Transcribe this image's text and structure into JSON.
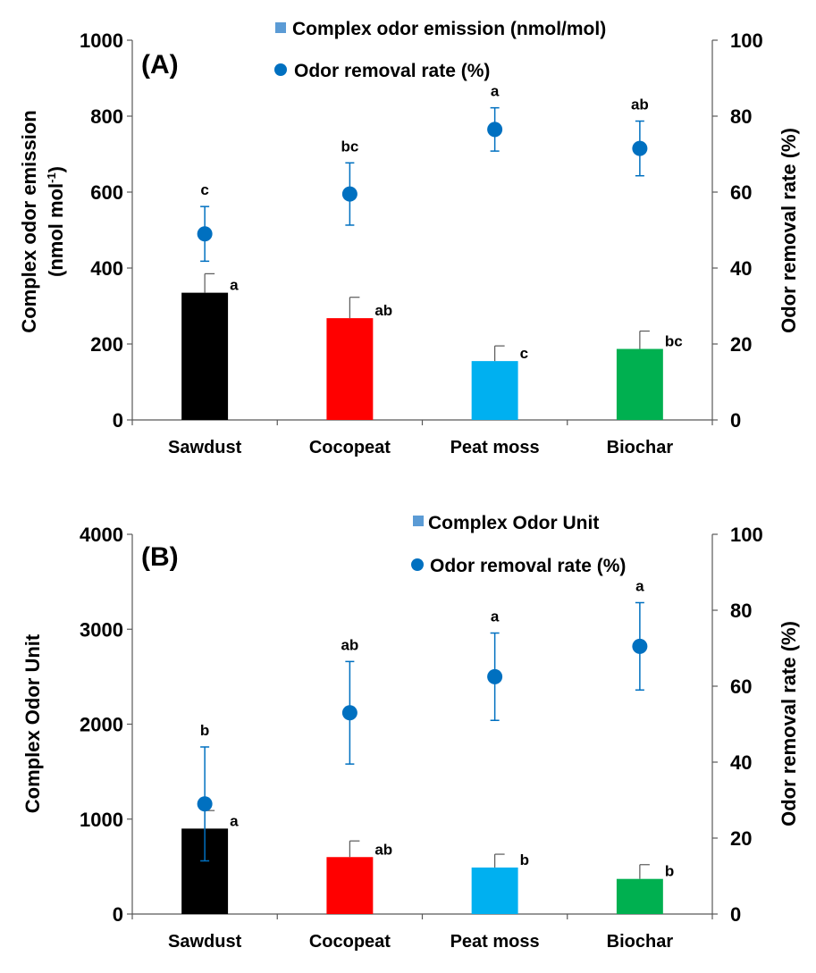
{
  "figure": {
    "panels": [
      {
        "panel_label": "(A)",
        "left_axis_title_line1": "Complex odor emission",
        "left_axis_title_line2_prefix": "(nmol mol",
        "left_axis_title_line2_sup": "-1",
        "left_axis_title_line2_suffix": ")",
        "right_axis_title": "Odor removal rate (%)",
        "legend_bar_label": "Complex odor emission (nmol/mol)",
        "legend_point_label": "Odor removal rate (%)"
      },
      {
        "panel_label": "(B)",
        "left_axis_title_line1": "Complex Odor Unit",
        "right_axis_title": "Odor removal rate (%)",
        "legend_bar_label": "Complex Odor Unit",
        "legend_point_label": "Odor removal rate (%)"
      }
    ]
  },
  "chart_data": [
    {
      "type": "bar",
      "title": "(A)",
      "categories": [
        "Sawdust",
        "Cocopeat",
        "Peat moss",
        "Biochar"
      ],
      "bar_colors": [
        "#000000",
        "#ff0000",
        "#00b0f0",
        "#00b050"
      ],
      "series": [
        {
          "name": "Complex odor emission (nmol/mol)",
          "axis": "left",
          "values": [
            335,
            268,
            155,
            187
          ],
          "errors": [
            50,
            55,
            40,
            47
          ],
          "labels": [
            "a",
            "ab",
            "c",
            "bc"
          ]
        },
        {
          "name": "Odor removal rate (%)",
          "axis": "right",
          "kind": "scatter",
          "color": "#0070c0",
          "values": [
            49,
            59.5,
            76.5,
            71.5
          ],
          "errors": [
            7.2,
            8.2,
            5.7,
            7.2
          ],
          "labels": [
            "c",
            "bc",
            "a",
            "ab"
          ]
        }
      ],
      "ylabel": "Complex odor emission (nmol mol-1)",
      "y2label": "Odor removal rate (%)",
      "ylim": [
        0,
        1000
      ],
      "y2lim": [
        0,
        100
      ],
      "yticks": [
        0,
        200,
        400,
        600,
        800,
        1000
      ],
      "y2ticks": [
        0,
        20,
        40,
        60,
        80,
        100
      ],
      "legend": "top-right"
    },
    {
      "type": "bar",
      "title": "(B)",
      "categories": [
        "Sawdust",
        "Cocopeat",
        "Peat moss",
        "Biochar"
      ],
      "bar_colors": [
        "#000000",
        "#ff0000",
        "#00b0f0",
        "#00b050"
      ],
      "series": [
        {
          "name": "Complex Odor Unit",
          "axis": "left",
          "values": [
            900,
            600,
            490,
            370
          ],
          "errors": [
            190,
            170,
            140,
            150
          ],
          "labels": [
            "a",
            "ab",
            "b",
            "b"
          ]
        },
        {
          "name": "Odor removal rate (%)",
          "axis": "right",
          "kind": "scatter",
          "color": "#0070c0",
          "values": [
            29,
            53,
            62.5,
            70.5
          ],
          "errors": [
            15,
            13.5,
            11.5,
            11.5
          ],
          "labels": [
            "b",
            "ab",
            "a",
            "a"
          ]
        }
      ],
      "ylabel": "Complex Odor Unit",
      "y2label": "Odor removal rate (%)",
      "ylim": [
        0,
        4000
      ],
      "y2lim": [
        0,
        100
      ],
      "yticks": [
        0,
        1000,
        2000,
        3000,
        4000
      ],
      "y2ticks": [
        0,
        20,
        40,
        60,
        80,
        100
      ],
      "legend": "top-right"
    }
  ]
}
